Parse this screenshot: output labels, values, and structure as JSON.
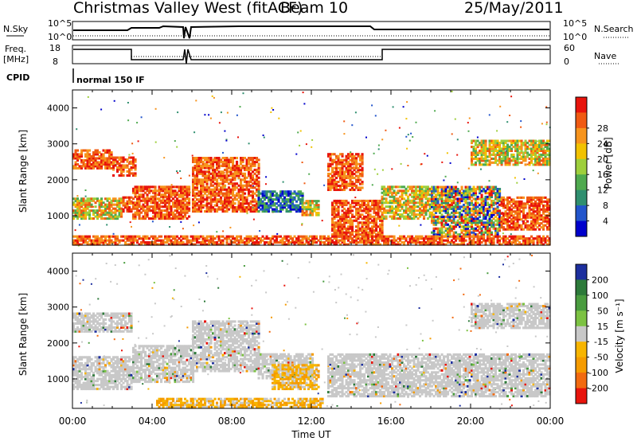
{
  "header": {
    "title": "Christmas Valley West (fitACF)",
    "beam": "Beam 10",
    "date": "25/May/2011"
  },
  "summary_panels": {
    "nsky": {
      "left_label": "N.Sky",
      "tick_top": "10^5",
      "tick_bottom": "10^0",
      "right_label": "N.Search",
      "right_tick_top": "10^5",
      "right_tick_bottom": "10^0"
    },
    "freq": {
      "left_label_1": "Freq.",
      "left_label_2": "[MHz]",
      "tick_top": "18",
      "tick_bottom": "8",
      "right_label": "Nave",
      "right_tick_top": "60",
      "right_tick_bottom": "0"
    },
    "cpid": {
      "left_label": "CPID",
      "mode_text": "normal 150 IF"
    }
  },
  "chart_data": [
    {
      "type": "heatmap",
      "name": "power",
      "xlabel": "",
      "ylabel": "Slant Range [km]",
      "xlim": [
        0,
        24
      ],
      "ylim": [
        180,
        4500
      ],
      "y_ticks": [
        1000,
        2000,
        3000,
        4000
      ],
      "x_ticks": [
        0,
        4,
        8,
        12,
        16,
        20,
        24
      ],
      "colorbar": {
        "label": "Power [dB]",
        "ticks": [
          "4",
          "8",
          "12",
          "16",
          "20",
          "24",
          "28"
        ],
        "colors": [
          "#0000cc",
          "#2255cc",
          "#2f8f6f",
          "#4faa4f",
          "#9ecf3c",
          "#f2c200",
          "#f7941d",
          "#f05a12",
          "#e8140c"
        ]
      },
      "regions": [
        {
          "t0": 0.0,
          "t1": 2.0,
          "r0": 2300,
          "r1": 2800,
          "level": "high"
        },
        {
          "t0": 2.0,
          "t1": 3.2,
          "r0": 2100,
          "r1": 2600,
          "level": "high"
        },
        {
          "t0": 0.0,
          "t1": 2.5,
          "r0": 900,
          "r1": 1500,
          "level": "mid"
        },
        {
          "t0": 2.5,
          "t1": 3.0,
          "r0": 1100,
          "r1": 1500,
          "level": "high"
        },
        {
          "t0": 3.0,
          "t1": 5.8,
          "r0": 900,
          "r1": 1800,
          "level": "high"
        },
        {
          "t0": 6.0,
          "t1": 9.3,
          "r0": 1100,
          "r1": 2600,
          "level": "high"
        },
        {
          "t0": 9.3,
          "t1": 11.5,
          "r0": 1100,
          "r1": 1700,
          "level": "low"
        },
        {
          "t0": 11.5,
          "t1": 12.3,
          "r0": 1000,
          "r1": 1400,
          "level": "mid"
        },
        {
          "t0": 12.8,
          "t1": 14.5,
          "r0": 1700,
          "r1": 2700,
          "level": "high"
        },
        {
          "t0": 13.0,
          "t1": 15.5,
          "r0": 400,
          "r1": 1400,
          "level": "high"
        },
        {
          "t0": 15.5,
          "t1": 18.0,
          "r0": 900,
          "r1": 1800,
          "level": "mid"
        },
        {
          "t0": 18.0,
          "t1": 21.5,
          "r0": 400,
          "r1": 1800,
          "level": "mixed"
        },
        {
          "t0": 21.5,
          "t1": 24.0,
          "r0": 600,
          "r1": 1500,
          "level": "high"
        },
        {
          "t0": 20.0,
          "t1": 24.0,
          "r0": 2400,
          "r1": 3100,
          "level": "mid"
        },
        {
          "t0": 0.0,
          "t1": 24.0,
          "r0": 180,
          "r1": 450,
          "level": "high"
        }
      ]
    },
    {
      "type": "heatmap",
      "name": "velocity",
      "xlabel": "Time UT",
      "ylabel": "Slant Range [km]",
      "xlim": [
        0,
        24
      ],
      "ylim": [
        180,
        4500
      ],
      "y_ticks": [
        1000,
        2000,
        3000,
        4000
      ],
      "x_ticks": [
        0,
        4,
        8,
        12,
        16,
        20,
        24
      ],
      "x_tick_labels": [
        "00:00",
        "04:00",
        "08:00",
        "12:00",
        "16:00",
        "20:00",
        "00:00"
      ],
      "colorbar": {
        "label": "Velocity [m s⁻¹]",
        "ticks": [
          "200",
          "100",
          "50",
          "15",
          "-15",
          "-50",
          "-100",
          "-200"
        ],
        "colors": [
          "#1d2f9e",
          "#2d7a3a",
          "#4a9c3f",
          "#7cc242",
          "#c8c8c8",
          "#f7b500",
          "#f59b00",
          "#f26a10",
          "#e8140c"
        ]
      },
      "regions": [
        {
          "t0": 0.0,
          "t1": 3.0,
          "r0": 2300,
          "r1": 2800,
          "level": "gray"
        },
        {
          "t0": 0.0,
          "t1": 3.0,
          "r0": 700,
          "r1": 1600,
          "level": "gray"
        },
        {
          "t0": 3.0,
          "t1": 6.0,
          "r0": 900,
          "r1": 1900,
          "level": "gray"
        },
        {
          "t0": 6.0,
          "t1": 9.3,
          "r0": 1200,
          "r1": 2600,
          "level": "gray"
        },
        {
          "t0": 9.3,
          "t1": 12.0,
          "r0": 1000,
          "r1": 1700,
          "level": "gray"
        },
        {
          "t0": 10.0,
          "t1": 12.3,
          "r0": 700,
          "r1": 1400,
          "level": "orange"
        },
        {
          "t0": 4.2,
          "t1": 12.5,
          "r0": 200,
          "r1": 450,
          "level": "orange"
        },
        {
          "t0": 12.8,
          "t1": 24.0,
          "r0": 500,
          "r1": 1700,
          "level": "gray"
        },
        {
          "t0": 20.0,
          "t1": 24.0,
          "r0": 2400,
          "r1": 3100,
          "level": "gray"
        }
      ]
    }
  ]
}
